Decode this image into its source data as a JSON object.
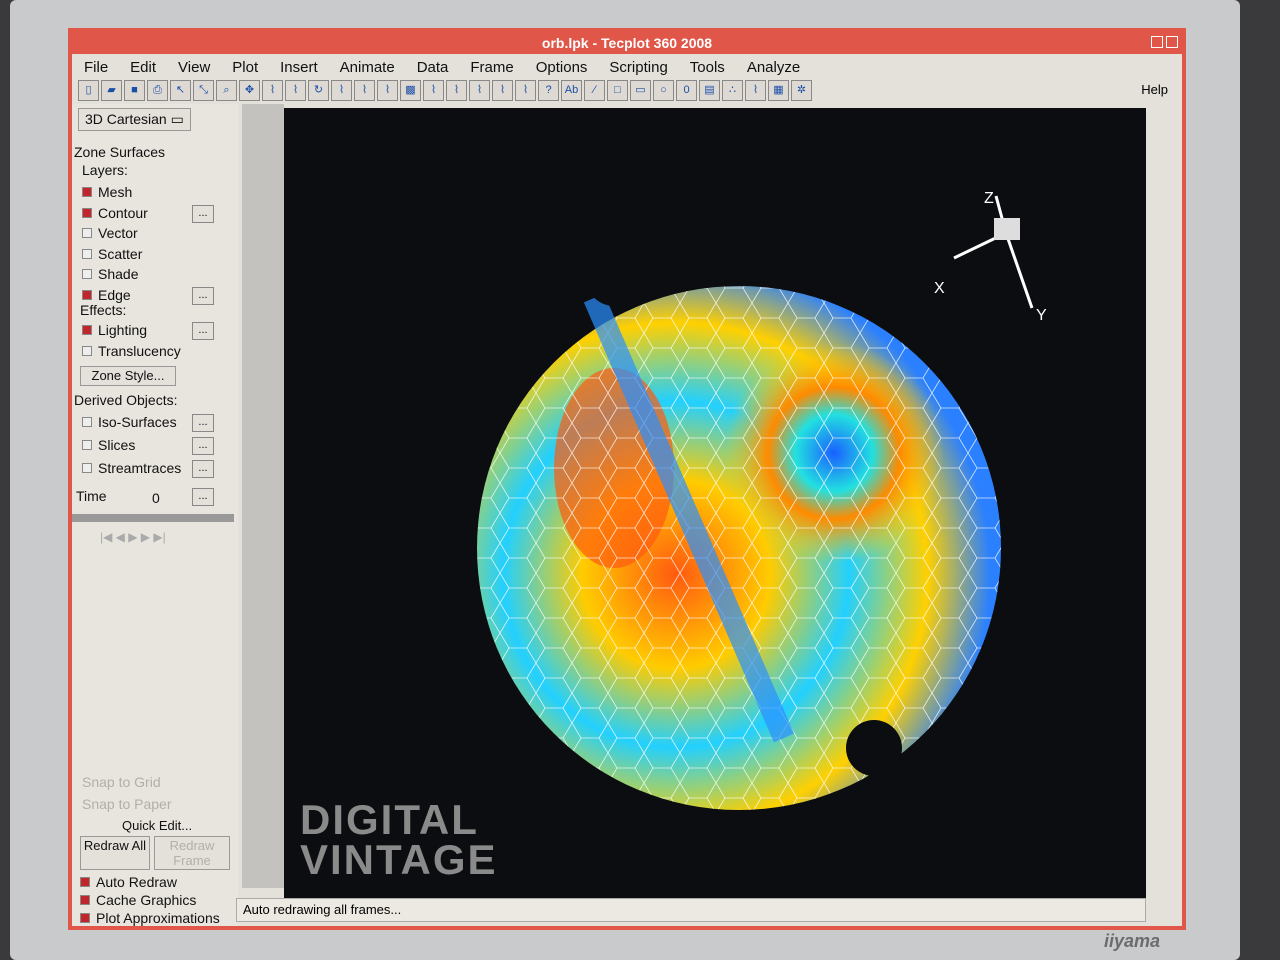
{
  "window": {
    "title": "orb.lpk - Tecplot 360 2008"
  },
  "menu": [
    "File",
    "Edit",
    "View",
    "Plot",
    "Insert",
    "Animate",
    "Data",
    "Frame",
    "Options",
    "Scripting",
    "Tools",
    "Analyze"
  ],
  "help": "Help",
  "toolbar_icons": [
    "new-icon",
    "open-icon",
    "save-icon",
    "print-icon",
    "select-icon",
    "adjust-icon",
    "zoom-icon",
    "translate-icon",
    "rotate-x-icon",
    "rotate-y-icon",
    "rotate-icon",
    "probe-x-icon",
    "probe-y-icon",
    "anchor-icon",
    "contour-icon",
    "streamtrace-icon",
    "slice-icon",
    "iso-icon",
    "edge-icon",
    "mesh-icon",
    "help-icon",
    "text-icon",
    "line-icon",
    "square-icon",
    "rectangle-icon",
    "circle-icon",
    "ellipse-icon",
    "frame-icon",
    "scatter-icon",
    "polyline-icon",
    "grid-icon",
    "gear-icon"
  ],
  "sidebar": {
    "plot_type": "3D Cartesian",
    "zone_surfaces": "Zone Surfaces",
    "layers_label": "Layers:",
    "layers": [
      {
        "label": "Mesh",
        "checked": true
      },
      {
        "label": "Contour",
        "checked": true,
        "more": true
      },
      {
        "label": "Vector",
        "checked": false
      },
      {
        "label": "Scatter",
        "checked": false
      },
      {
        "label": "Shade",
        "checked": false
      },
      {
        "label": "Edge",
        "checked": true,
        "more": true
      }
    ],
    "effects_label": "Effects:",
    "effects": [
      {
        "label": "Lighting",
        "checked": true,
        "more": true
      },
      {
        "label": "Translucency",
        "checked": false
      }
    ],
    "zone_style": "Zone Style...",
    "derived_label": "Derived Objects:",
    "derived": [
      {
        "label": "Iso-Surfaces",
        "checked": false
      },
      {
        "label": "Slices",
        "checked": false
      },
      {
        "label": "Streamtraces",
        "checked": false
      }
    ],
    "more": "...",
    "time_label": "Time",
    "time_value": "0",
    "snap_grid": "Snap to Grid",
    "snap_paper": "Snap to Paper",
    "quick_edit": "Quick Edit...",
    "redraw_all": "Redraw All",
    "redraw_frame": "Redraw Frame",
    "options": [
      {
        "label": "Auto Redraw",
        "checked": true
      },
      {
        "label": "Cache Graphics",
        "checked": true
      },
      {
        "label": "Plot Approximations",
        "checked": true
      }
    ]
  },
  "axes": {
    "x": "X",
    "y": "Y",
    "z": "Z"
  },
  "status": "Auto redrawing all frames...",
  "watermark": "DIGITAL VINTAGE",
  "monitor_brand": "iiyama"
}
